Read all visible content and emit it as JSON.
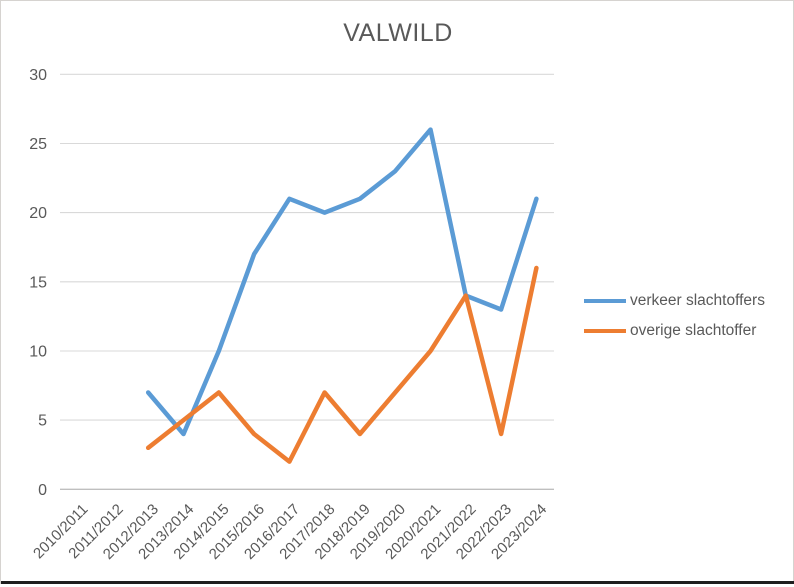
{
  "window": {
    "background": "#ffffff",
    "border_color": "#d6d3d0",
    "bottom_edge_color": "#1e1e1e"
  },
  "chart_data": {
    "type": "line",
    "title": "VALWILD",
    "categories": [
      "2010/2011",
      "2011/2012",
      "2012/2013",
      "2013/2014",
      "2014/2015",
      "2015/2016",
      "2016/2017",
      "2017/2018",
      "2018/2019",
      "2019/2020",
      "2020/2021",
      "2021/2022",
      "2022/2023",
      "2023/2024"
    ],
    "series": [
      {
        "name": "verkeer slachtoffers",
        "color": "#5b9bd5",
        "values": [
          null,
          null,
          7,
          4,
          10,
          17,
          21,
          20,
          21,
          23,
          26,
          14,
          13,
          21
        ]
      },
      {
        "name": "overige slachtoffer",
        "color": "#ed7d31",
        "values": [
          null,
          null,
          3,
          5,
          7,
          4,
          2,
          7,
          4,
          7,
          10,
          14,
          4,
          16
        ]
      }
    ],
    "xlabel": "",
    "ylabel": "",
    "ylim": [
      0,
      30
    ],
    "yticks": [
      0,
      5,
      10,
      15,
      20,
      25,
      30
    ],
    "grid": true,
    "legend_position": "right",
    "x_label_rotation": -45,
    "text_color": "#595959",
    "gridline_color": "#d9d9d9",
    "axis_line_color": "#bfbfbf"
  }
}
